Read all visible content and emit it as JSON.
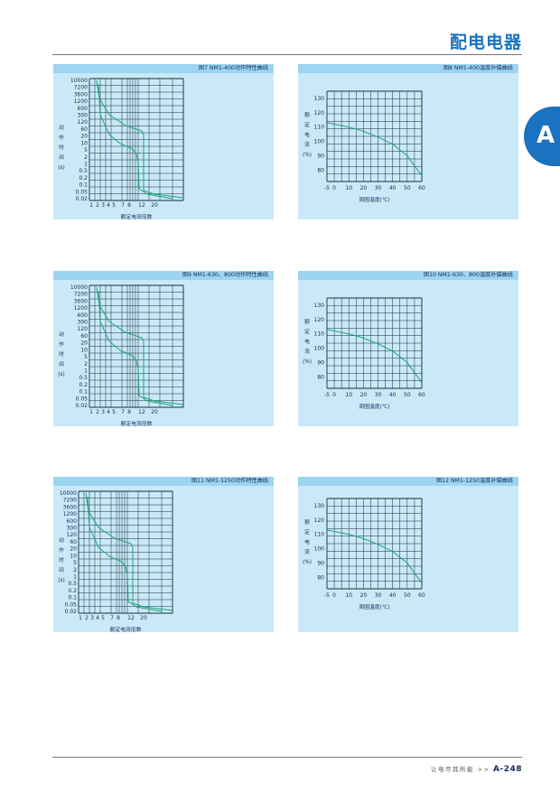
{
  "header": {
    "title": "配电电器",
    "section_tab": "A"
  },
  "panels": [
    {
      "title": "图7 NM1-400动作特性曲线",
      "kind": "tripping"
    },
    {
      "title": "图8 NM1-400温度补偿曲线",
      "kind": "temperature"
    },
    {
      "title": "图9 NM1-630、800动作特性曲线",
      "kind": "tripping"
    },
    {
      "title": "图10 NM1-630、800温度补偿曲线",
      "kind": "temperature"
    },
    {
      "title": "图11 NM1-1250动作特性曲线",
      "kind": "tripping"
    },
    {
      "title": "图12 NM1-1250温度补偿曲线",
      "kind": "temperature"
    }
  ],
  "tripping_axis": {
    "ylabel_chars": [
      "动",
      "作",
      "时",
      "间",
      "(s)"
    ],
    "xlabel": "额定电流倍数",
    "y_ticks": [
      "10000",
      "7200",
      "3600",
      "1200",
      "600",
      "300",
      "120",
      "60",
      "20",
      "10",
      "5",
      "2",
      "1",
      "0.5",
      "0.2",
      "0.1",
      "0.05",
      "0.02"
    ],
    "x_ticks": [
      "1",
      "2",
      "3",
      "4",
      "5",
      "7",
      "8",
      "12",
      "20"
    ]
  },
  "temperature_axis": {
    "ylabel_chars": [
      "额",
      "定",
      "电",
      "流",
      "(%)"
    ],
    "xlabel": "周围温度(℃)",
    "y_ticks": [
      "130",
      "120",
      "110",
      "100",
      "90",
      "80"
    ],
    "x_ticks": [
      "-5",
      "0",
      "10",
      "20",
      "30",
      "40",
      "50",
      "60"
    ]
  },
  "chart_data": [
    {
      "type": "line",
      "title": "图7 NM1-400动作特性曲线",
      "xlabel": "额定电流倍数",
      "ylabel": "动作时间(s)",
      "x_ticks": [
        "1",
        "2",
        "3",
        "4",
        "5",
        "7",
        "8",
        "12",
        "20"
      ],
      "y_ticks": [
        "10000",
        "7200",
        "3600",
        "1200",
        "600",
        "300",
        "120",
        "60",
        "20",
        "10",
        "5",
        "2",
        "1",
        "0.5",
        "0.2",
        "0.1",
        "0.05",
        "0.02"
      ],
      "series": [
        {
          "values": [
            [
              1.1,
              3600
            ],
            [
              1.5,
              600
            ],
            [
              3,
              60
            ],
            [
              6,
              20
            ],
            [
              8,
              10
            ],
            [
              8,
              0.1
            ],
            [
              12,
              0.03
            ],
            [
              20,
              0.02
            ]
          ]
        },
        {
          "values": [
            [
              1.2,
              600
            ],
            [
              2,
              60
            ],
            [
              3,
              10
            ],
            [
              5,
              2
            ],
            [
              7,
              0.5
            ],
            [
              7,
              0.05
            ],
            [
              12,
              0.02
            ]
          ]
        }
      ],
      "grid": true
    },
    {
      "type": "line",
      "title": "图8 NM1-400温度补偿曲线",
      "xlabel": "周围温度(℃)",
      "ylabel": "额定电流(%)",
      "x": [
        -5,
        0,
        10,
        20,
        30,
        40,
        50,
        60
      ],
      "series": [
        {
          "values": [
            113,
            112,
            110,
            107,
            103,
            98,
            90,
            76
          ]
        }
      ],
      "xlim": [
        -5,
        60
      ],
      "ylim": [
        72,
        135
      ],
      "grid": true
    },
    {
      "type": "line",
      "title": "图9 NM1-630、800动作特性曲线",
      "xlabel": "额定电流倍数",
      "ylabel": "动作时间(s)",
      "x_ticks": [
        "1",
        "2",
        "3",
        "4",
        "5",
        "7",
        "8",
        "12",
        "20"
      ],
      "y_ticks": [
        "10000",
        "7200",
        "3600",
        "1200",
        "600",
        "300",
        "120",
        "60",
        "20",
        "10",
        "5",
        "2",
        "1",
        "0.5",
        "0.2",
        "0.1",
        "0.05",
        "0.02"
      ],
      "series": [
        {
          "values": [
            [
              1.1,
              3600
            ],
            [
              1.5,
              600
            ],
            [
              3,
              60
            ],
            [
              6,
              20
            ],
            [
              8,
              10
            ],
            [
              8,
              0.1
            ],
            [
              12,
              0.03
            ],
            [
              20,
              0.02
            ]
          ]
        },
        {
          "values": [
            [
              1.2,
              600
            ],
            [
              2,
              60
            ],
            [
              3,
              10
            ],
            [
              5,
              2
            ],
            [
              7,
              0.5
            ],
            [
              7,
              0.05
            ],
            [
              12,
              0.02
            ]
          ]
        }
      ],
      "grid": true
    },
    {
      "type": "line",
      "title": "图10 NM1-630、800温度补偿曲线",
      "xlabel": "周围温度(℃)",
      "ylabel": "额定电流(%)",
      "x": [
        -5,
        0,
        10,
        20,
        30,
        40,
        50,
        60
      ],
      "series": [
        {
          "values": [
            113,
            112,
            110,
            107,
            103,
            98,
            90,
            76
          ]
        }
      ],
      "xlim": [
        -5,
        60
      ],
      "ylim": [
        72,
        135
      ],
      "grid": true
    },
    {
      "type": "line",
      "title": "图11 NM1-1250动作特性曲线",
      "xlabel": "额定电流倍数",
      "ylabel": "动作时间(s)",
      "x_ticks": [
        "1",
        "2",
        "3",
        "4",
        "5",
        "7",
        "8",
        "12",
        "20"
      ],
      "y_ticks": [
        "10000",
        "7200",
        "3600",
        "1200",
        "600",
        "300",
        "120",
        "60",
        "20",
        "10",
        "5",
        "2",
        "1",
        "0.5",
        "0.2",
        "0.1",
        "0.05",
        "0.02"
      ],
      "series": [
        {
          "values": [
            [
              1.1,
              3600
            ],
            [
              1.5,
              600
            ],
            [
              3,
              60
            ],
            [
              6,
              20
            ],
            [
              8,
              10
            ],
            [
              8,
              0.1
            ],
            [
              12,
              0.03
            ],
            [
              20,
              0.02
            ]
          ]
        },
        {
          "values": [
            [
              1.2,
              600
            ],
            [
              2,
              60
            ],
            [
              3,
              10
            ],
            [
              5,
              2
            ],
            [
              7,
              0.5
            ],
            [
              7,
              0.05
            ],
            [
              12,
              0.02
            ]
          ]
        }
      ],
      "grid": true
    },
    {
      "type": "line",
      "title": "图12 NM1-1250温度补偿曲线",
      "xlabel": "周围温度(℃)",
      "ylabel": "额定电流(%)",
      "x": [
        -5,
        0,
        10,
        20,
        30,
        40,
        50,
        60
      ],
      "series": [
        {
          "values": [
            113,
            112,
            110,
            107,
            103,
            98,
            90,
            76
          ]
        }
      ],
      "xlim": [
        -5,
        60
      ],
      "ylim": [
        72,
        135
      ],
      "grid": true
    }
  ],
  "colors": {
    "brand": "#1a72c0",
    "panel_bg": "#c9e9f8",
    "panel_title_bg": "#9bd5f2",
    "curve": "#1aa37a",
    "grid": "#1a2a3a"
  },
  "footer": {
    "slogan": "让电尽其所能",
    "arrows": ">>",
    "page_number": "A-248"
  }
}
